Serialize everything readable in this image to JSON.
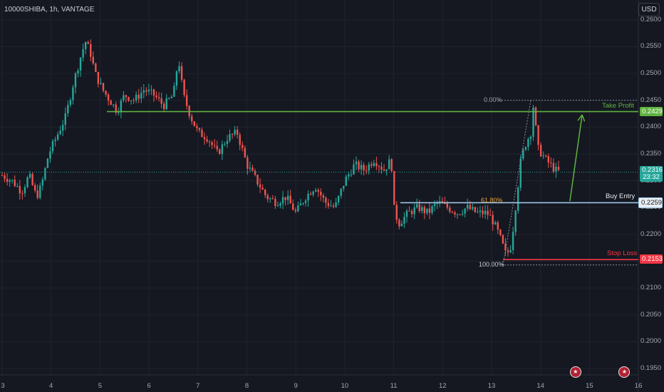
{
  "header": {
    "title": "10000SHIBA, 1h, VANTAGE",
    "currency_button": "USD"
  },
  "colors": {
    "bull": "#26a69a",
    "bear": "#ef5350",
    "take_profit": "#5fb340",
    "buy_entry": "#9ec6e6",
    "stop_loss": "#f23645",
    "fib": "#8a8f9a",
    "fib_618": "#e8a33d"
  },
  "chart_data": {
    "type": "candlestick",
    "ylim": [
      0.1938,
      0.2637
    ],
    "yticks": [
      "0.2600",
      "0.2550",
      "0.2500",
      "0.2450",
      "0.2400",
      "0.2350",
      "0.2300",
      "0.2250",
      "0.2200",
      "0.2150",
      "0.2100",
      "0.2050",
      "0.2000",
      "0.1950"
    ],
    "xticks": [
      "3",
      "4",
      "5",
      "6",
      "7",
      "8",
      "9",
      "10",
      "11",
      "12",
      "13",
      "14",
      "15",
      "16"
    ],
    "price_path": [
      [
        3.0,
        0.231
      ],
      [
        3.2,
        0.23
      ],
      [
        3.4,
        0.228
      ],
      [
        3.55,
        0.231
      ],
      [
        3.7,
        0.227
      ],
      [
        3.8,
        0.229
      ],
      [
        3.95,
        0.235
      ],
      [
        4.1,
        0.238
      ],
      [
        4.3,
        0.242
      ],
      [
        4.45,
        0.248
      ],
      [
        4.6,
        0.253
      ],
      [
        4.7,
        0.256
      ],
      [
        4.8,
        0.254
      ],
      [
        4.9,
        0.25
      ],
      [
        5.05,
        0.247
      ],
      [
        5.2,
        0.245
      ],
      [
        5.35,
        0.243
      ],
      [
        5.5,
        0.246
      ],
      [
        5.7,
        0.245
      ],
      [
        5.9,
        0.247
      ],
      [
        6.1,
        0.246
      ],
      [
        6.3,
        0.244
      ],
      [
        6.5,
        0.246
      ],
      [
        6.6,
        0.253
      ],
      [
        6.7,
        0.246
      ],
      [
        6.85,
        0.242
      ],
      [
        7.0,
        0.239
      ],
      [
        7.2,
        0.238
      ],
      [
        7.4,
        0.235
      ],
      [
        7.6,
        0.238
      ],
      [
        7.8,
        0.239
      ],
      [
        8.0,
        0.233
      ],
      [
        8.2,
        0.23
      ],
      [
        8.4,
        0.227
      ],
      [
        8.6,
        0.226
      ],
      [
        8.8,
        0.227
      ],
      [
        9.0,
        0.224
      ],
      [
        9.2,
        0.227
      ],
      [
        9.4,
        0.229
      ],
      [
        9.6,
        0.226
      ],
      [
        9.8,
        0.225
      ],
      [
        10.0,
        0.23
      ],
      [
        10.2,
        0.233
      ],
      [
        10.4,
        0.232
      ],
      [
        10.6,
        0.234
      ],
      [
        10.8,
        0.232
      ],
      [
        10.95,
        0.234
      ],
      [
        11.0,
        0.225
      ],
      [
        11.1,
        0.222
      ],
      [
        11.3,
        0.224
      ],
      [
        11.5,
        0.225
      ],
      [
        11.7,
        0.224
      ],
      [
        11.9,
        0.226
      ],
      [
        12.1,
        0.225
      ],
      [
        12.3,
        0.224
      ],
      [
        12.5,
        0.225
      ],
      [
        12.7,
        0.224
      ],
      [
        12.9,
        0.224
      ],
      [
        13.0,
        0.223
      ],
      [
        13.15,
        0.22
      ],
      [
        13.3,
        0.216
      ],
      [
        13.4,
        0.218
      ],
      [
        13.5,
        0.226
      ],
      [
        13.6,
        0.234
      ],
      [
        13.7,
        0.237
      ],
      [
        13.8,
        0.239
      ],
      [
        13.85,
        0.244
      ],
      [
        13.95,
        0.236
      ],
      [
        14.1,
        0.234
      ],
      [
        14.3,
        0.232
      ],
      [
        14.4,
        0.2316
      ]
    ],
    "levels": {
      "take_profit": 0.2429,
      "buy_entry": 0.2259,
      "stop_loss": 0.2153,
      "last_price": 0.2316,
      "fib_0": 0.245,
      "fib_1": 0.2143
    },
    "fib_labels": {
      "zero": "0.00%",
      "entry": "61.80%",
      "hundred": "100.00%"
    },
    "labels": {
      "take_profit": "Take Profit",
      "buy_entry": "Buy Entry",
      "stop_loss": "Stop Loss"
    },
    "price_tags": {
      "take_profit": "0.2429",
      "last_price": "0.2316",
      "countdown": "23:32",
      "buy_entry": "0.2259",
      "stop_loss": "0.2153"
    },
    "projection": {
      "from": [
        14.6,
        0.2262
      ],
      "to": [
        14.85,
        0.2423
      ]
    }
  },
  "events": {
    "flag_icon": "us-flag-icon",
    "flag_positions": [
      14.7,
      15.7
    ]
  }
}
